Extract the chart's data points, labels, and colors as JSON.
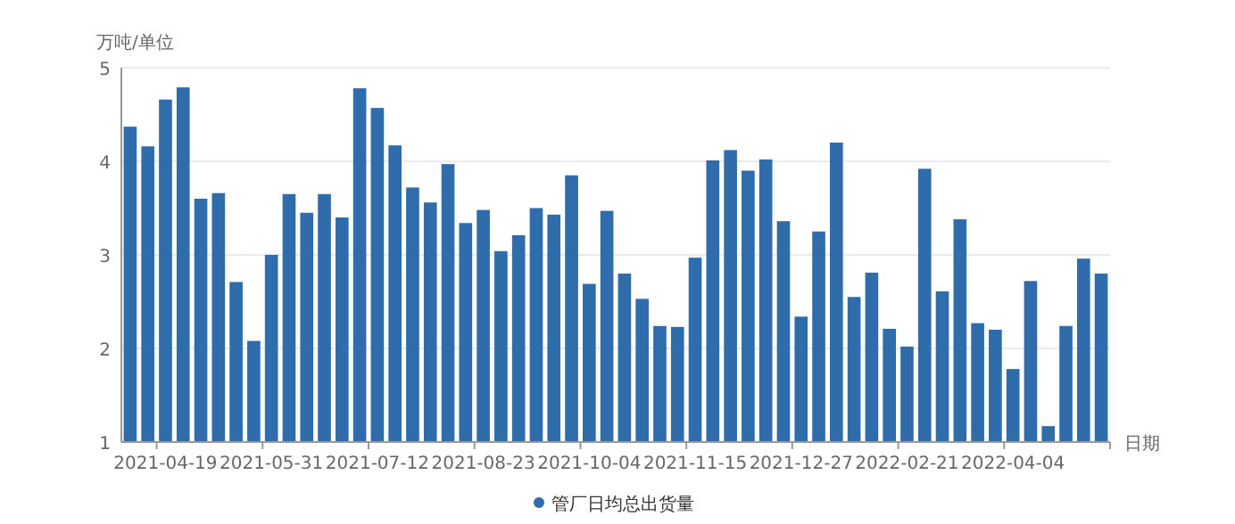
{
  "chart_data": {
    "type": "bar",
    "ylabel": "万吨/单位",
    "xlabel": "日期",
    "categories": [
      null,
      null,
      "2021-04-19",
      null,
      null,
      null,
      null,
      null,
      "2021-05-31",
      null,
      null,
      null,
      null,
      null,
      "2021-07-12",
      null,
      null,
      null,
      null,
      null,
      "2021-08-23",
      null,
      null,
      null,
      null,
      null,
      "2021-10-04",
      null,
      null,
      null,
      null,
      null,
      "2021-11-15",
      null,
      null,
      null,
      null,
      null,
      "2021-12-27",
      null,
      null,
      null,
      null,
      null,
      "2022-02-21",
      null,
      null,
      null,
      null,
      null,
      "2022-04-04",
      null,
      null,
      null,
      null,
      null
    ],
    "series": [
      {
        "name": "管厂日均总出货量",
        "color": "#2f6cab",
        "values": [
          4.37,
          4.16,
          4.66,
          4.79,
          3.6,
          3.66,
          2.71,
          2.08,
          3.0,
          3.65,
          3.45,
          3.65,
          3.4,
          4.78,
          4.57,
          4.17,
          3.72,
          3.56,
          3.97,
          3.34,
          3.48,
          3.04,
          3.21,
          3.5,
          3.43,
          3.85,
          2.69,
          3.47,
          2.8,
          2.53,
          2.24,
          2.23,
          2.97,
          4.01,
          4.12,
          3.9,
          4.02,
          3.36,
          2.34,
          3.25,
          4.2,
          2.55,
          2.81,
          2.21,
          2.02,
          3.92,
          2.61,
          3.38,
          2.27,
          2.2,
          1.78,
          2.72,
          1.17,
          2.24,
          2.96,
          2.8
        ]
      }
    ],
    "ylim": [
      1,
      5
    ],
    "yticks": [
      1,
      2,
      3,
      4,
      5
    ],
    "grid": "y",
    "legend": "bottom"
  }
}
